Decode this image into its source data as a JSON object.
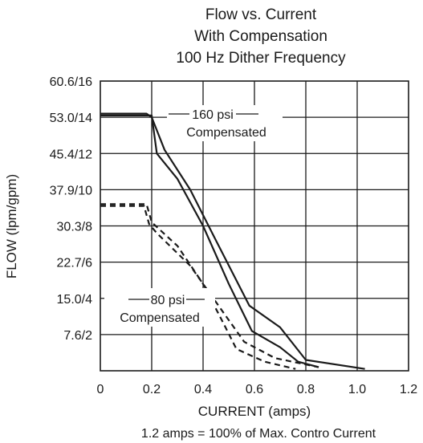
{
  "chart_data": {
    "type": "line",
    "title_lines": [
      "Flow vs. Current",
      "With Compensation",
      "100 Hz Dither Frequency"
    ],
    "xlabel": "CURRENT (amps)",
    "ylabel": "FLOW (lpm/gpm)",
    "footnote": "1.2 amps = 100% of Max. Contro  Current",
    "xlim": [
      0,
      1.2
    ],
    "ylim": [
      0,
      16
    ],
    "x_ticks": [
      {
        "value": 0,
        "label": "0"
      },
      {
        "value": 0.2,
        "label": "0.2"
      },
      {
        "value": 0.4,
        "label": "0.4"
      },
      {
        "value": 0.6,
        "label": "0.6"
      },
      {
        "value": 0.8,
        "label": "0.8"
      },
      {
        "value": 1.0,
        "label": "1.0"
      },
      {
        "value": 1.2,
        "label": "1.2"
      }
    ],
    "y_ticks": [
      {
        "value": 2,
        "label": "7.6/2"
      },
      {
        "value": 4,
        "label": "15.0/4"
      },
      {
        "value": 6,
        "label": "22.7/6"
      },
      {
        "value": 8,
        "label": "30.3/8"
      },
      {
        "value": 10,
        "label": "37.9/10"
      },
      {
        "value": 12,
        "label": "45.4/12"
      },
      {
        "value": 14,
        "label": "53.0/14"
      },
      {
        "value": 16,
        "label": "60.6/16"
      }
    ],
    "grid": true,
    "series": [
      {
        "group": "160 psi",
        "style": "solid",
        "x": [
          0,
          0.18,
          0.2,
          0.25,
          0.35,
          0.45,
          0.58,
          0.7,
          0.8,
          1.03
        ],
        "y": [
          14.2,
          14.2,
          14.0,
          12.2,
          10.0,
          7.2,
          3.6,
          2.4,
          0.6,
          0.1
        ]
      },
      {
        "group": "160 psi",
        "style": "solid",
        "x": [
          0,
          0.2,
          0.22,
          0.3,
          0.4,
          0.5,
          0.59,
          0.7,
          0.77,
          0.85
        ],
        "y": [
          14.1,
          14.1,
          12.0,
          10.6,
          8.0,
          4.8,
          2.2,
          1.3,
          0.5,
          0.2
        ]
      },
      {
        "group": "80 psi",
        "style": "dashed",
        "x": [
          0,
          0.17,
          0.19,
          0.22,
          0.35,
          0.45,
          0.56,
          0.68,
          0.85
        ],
        "y": [
          9.1,
          9.1,
          8.1,
          7.6,
          5.8,
          3.8,
          1.6,
          0.7,
          0.2
        ]
      },
      {
        "group": "80 psi",
        "style": "dashed",
        "x": [
          0,
          0.18,
          0.2,
          0.3,
          0.4,
          0.48,
          0.53,
          0.64,
          0.76
        ],
        "y": [
          9.2,
          9.2,
          8.2,
          6.9,
          4.8,
          2.6,
          1.2,
          0.5,
          0.1
        ]
      }
    ],
    "annotations": [
      {
        "lines": [
          "160 psi",
          "Compensated"
        ],
        "refers_to": "160 psi"
      },
      {
        "lines": [
          "80 psi",
          "Compensated"
        ],
        "refers_to": "80 psi"
      }
    ]
  }
}
